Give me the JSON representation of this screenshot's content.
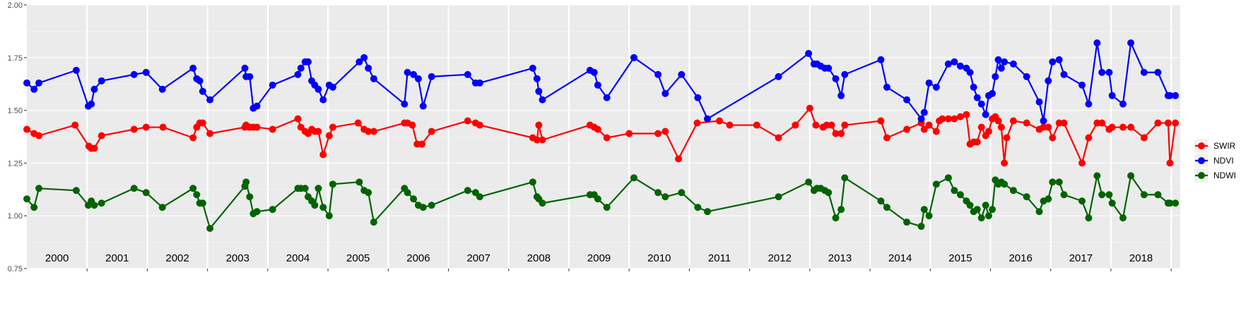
{
  "chart_data": {
    "type": "line",
    "title": "",
    "xlabel": "",
    "ylabel": "",
    "ylim": [
      0.75,
      2.0
    ],
    "y_ticks": [
      "0.75",
      "1.00",
      "1.25",
      "1.50",
      "1.75",
      "2.00"
    ],
    "y_tick_values": [
      0.75,
      1.0,
      1.25,
      1.5,
      1.75,
      2.0
    ],
    "xlim": [
      2000.0,
      2019.15
    ],
    "year_labels": [
      "2000",
      "2001",
      "2002",
      "2003",
      "2004",
      "2005",
      "2006",
      "2007",
      "2008",
      "2009",
      "2010",
      "2011",
      "2012",
      "2013",
      "2014",
      "2015",
      "2016",
      "2017",
      "2018"
    ],
    "year_label_values": [
      2000.5,
      2001.5,
      2002.5,
      2003.5,
      2004.5,
      2005.5,
      2006.5,
      2007.5,
      2008.5,
      2009.5,
      2010.5,
      2011.5,
      2012.5,
      2013.5,
      2014.5,
      2015.5,
      2016.5,
      2017.5,
      2018.5
    ],
    "year_dividers": [
      2001,
      2002,
      2003,
      2004,
      2005,
      2006,
      2007,
      2008,
      2009,
      2010,
      2011,
      2012,
      2013,
      2014,
      2015,
      2016,
      2017,
      2018,
      2019
    ],
    "grid": true,
    "legend_position": "right",
    "series": [
      {
        "name": "SWIR",
        "color": "#ff0000",
        "x": [
          2000.0,
          2000.12,
          2000.2,
          2000.8,
          2001.03,
          2001.07,
          2001.12,
          2001.24,
          2001.78,
          2001.98,
          2002.26,
          2002.76,
          2002.82,
          2002.87,
          2002.92,
          2003.04,
          2003.62,
          2003.64,
          2003.7,
          2003.76,
          2003.82,
          2004.08,
          2004.5,
          2004.55,
          2004.62,
          2004.67,
          2004.73,
          2004.78,
          2004.84,
          2004.92,
          2005.02,
          2005.08,
          2005.5,
          2005.6,
          2005.67,
          2005.76,
          2006.27,
          2006.32,
          2006.4,
          2006.48,
          2006.56,
          2006.72,
          2007.32,
          2007.45,
          2007.52,
          2008.4,
          2008.47,
          2008.5,
          2008.56,
          2009.35,
          2009.42,
          2009.48,
          2009.63,
          2010.0,
          2010.48,
          2010.6,
          2010.82,
          2011.13,
          2011.5,
          2011.67,
          2012.12,
          2012.48,
          2012.76,
          2013.0,
          2013.1,
          2013.22,
          2013.28,
          2013.36,
          2013.43,
          2013.52,
          2013.58,
          2014.18,
          2014.28,
          2014.61,
          2014.85,
          2014.9,
          2014.98,
          2015.1,
          2015.15,
          2015.2,
          2015.3,
          2015.4,
          2015.5,
          2015.6,
          2015.66,
          2015.72,
          2015.78,
          2015.85,
          2015.92,
          2015.97,
          2016.03,
          2016.08,
          2016.13,
          2016.18,
          2016.23,
          2016.27,
          2016.38,
          2016.6,
          2016.81,
          2016.88,
          2016.96,
          2017.03,
          2017.14,
          2017.22,
          2017.52,
          2017.63,
          2017.77,
          2017.85,
          2017.97,
          2018.02,
          2018.2,
          2018.33,
          2018.55,
          2018.78,
          2018.95,
          2018.98,
          2019.07
        ],
        "y": [
          1.41,
          1.39,
          1.38,
          1.43,
          1.33,
          1.32,
          1.32,
          1.38,
          1.41,
          1.42,
          1.42,
          1.37,
          1.42,
          1.44,
          1.44,
          1.39,
          1.42,
          1.43,
          1.42,
          1.42,
          1.42,
          1.41,
          1.46,
          1.42,
          1.4,
          1.39,
          1.41,
          1.4,
          1.4,
          1.29,
          1.38,
          1.42,
          1.44,
          1.41,
          1.4,
          1.4,
          1.44,
          1.44,
          1.43,
          1.34,
          1.34,
          1.4,
          1.45,
          1.44,
          1.43,
          1.37,
          1.36,
          1.43,
          1.36,
          1.43,
          1.42,
          1.41,
          1.37,
          1.39,
          1.39,
          1.4,
          1.27,
          1.44,
          1.45,
          1.43,
          1.43,
          1.37,
          1.43,
          1.51,
          1.43,
          1.42,
          1.43,
          1.43,
          1.39,
          1.39,
          1.43,
          1.45,
          1.37,
          1.41,
          1.44,
          1.41,
          1.43,
          1.4,
          1.45,
          1.46,
          1.46,
          1.46,
          1.47,
          1.48,
          1.34,
          1.35,
          1.35,
          1.42,
          1.38,
          1.4,
          1.46,
          1.47,
          1.45,
          1.42,
          1.25,
          1.37,
          1.45,
          1.44,
          1.41,
          1.42,
          1.42,
          1.37,
          1.44,
          1.44,
          1.25,
          1.37,
          1.44,
          1.44,
          1.41,
          1.42,
          1.42,
          1.42,
          1.37,
          1.44,
          1.44,
          1.25,
          1.44
        ],
        "x_note": ""
      },
      {
        "name": "NDVI",
        "color": "#0000ff",
        "x": [
          2000.0,
          2000.12,
          2000.2,
          2000.82,
          2001.02,
          2001.07,
          2001.12,
          2001.24,
          2001.78,
          2001.98,
          2002.25,
          2002.76,
          2002.82,
          2002.87,
          2002.92,
          2003.04,
          2003.62,
          2003.64,
          2003.7,
          2003.76,
          2003.82,
          2004.08,
          2004.5,
          2004.55,
          2004.62,
          2004.67,
          2004.73,
          2004.78,
          2004.84,
          2004.92,
          2005.02,
          2005.08,
          2005.52,
          2005.6,
          2005.67,
          2005.76,
          2006.27,
          2006.32,
          2006.42,
          2006.5,
          2006.58,
          2006.72,
          2007.32,
          2007.45,
          2007.52,
          2008.4,
          2008.47,
          2008.5,
          2008.56,
          2009.35,
          2009.42,
          2009.48,
          2009.63,
          2010.08,
          2010.48,
          2010.6,
          2010.87,
          2011.14,
          2011.3,
          2012.48,
          2012.98,
          2013.07,
          2013.12,
          2013.18,
          2013.25,
          2013.31,
          2013.43,
          2013.52,
          2013.58,
          2014.18,
          2014.28,
          2014.61,
          2014.85,
          2014.9,
          2014.98,
          2015.1,
          2015.3,
          2015.4,
          2015.5,
          2015.6,
          2015.66,
          2015.72,
          2015.78,
          2015.85,
          2015.92,
          2015.97,
          2016.03,
          2016.08,
          2016.13,
          2016.18,
          2016.23,
          2016.38,
          2016.6,
          2016.81,
          2016.88,
          2016.96,
          2017.03,
          2017.14,
          2017.22,
          2017.52,
          2017.63,
          2017.77,
          2017.85,
          2017.97,
          2018.02,
          2018.2,
          2018.33,
          2018.55,
          2018.78,
          2018.95,
          2018.98,
          2019.07
        ],
        "y": [
          1.63,
          1.6,
          1.63,
          1.69,
          1.52,
          1.53,
          1.6,
          1.64,
          1.67,
          1.68,
          1.6,
          1.7,
          1.65,
          1.64,
          1.59,
          1.55,
          1.7,
          1.66,
          1.66,
          1.51,
          1.52,
          1.62,
          1.67,
          1.7,
          1.73,
          1.73,
          1.64,
          1.62,
          1.6,
          1.55,
          1.62,
          1.61,
          1.73,
          1.75,
          1.7,
          1.65,
          1.53,
          1.68,
          1.67,
          1.65,
          1.52,
          1.66,
          1.67,
          1.63,
          1.63,
          1.7,
          1.65,
          1.59,
          1.55,
          1.69,
          1.68,
          1.62,
          1.56,
          1.75,
          1.67,
          1.58,
          1.67,
          1.56,
          1.46,
          1.66,
          1.77,
          1.72,
          1.72,
          1.71,
          1.7,
          1.7,
          1.65,
          1.57,
          1.67,
          1.74,
          1.61,
          1.55,
          1.46,
          1.49,
          1.63,
          1.61,
          1.72,
          1.73,
          1.71,
          1.7,
          1.68,
          1.61,
          1.56,
          1.53,
          1.48,
          1.57,
          1.58,
          1.66,
          1.74,
          1.7,
          1.73,
          1.72,
          1.66,
          1.54,
          1.45,
          1.64,
          1.73,
          1.74,
          1.67,
          1.62,
          1.53,
          1.82,
          1.68,
          1.68,
          1.57,
          1.53,
          1.82,
          1.68,
          1.68,
          1.57,
          1.57,
          1.57
        ],
        "x_note": ""
      },
      {
        "name": "NDWI",
        "color": "#006400",
        "x": [
          2000.0,
          2000.12,
          2000.2,
          2000.82,
          2001.02,
          2001.07,
          2001.12,
          2001.24,
          2001.78,
          2001.98,
          2002.25,
          2002.76,
          2002.82,
          2002.87,
          2002.92,
          2003.04,
          2003.62,
          2003.64,
          2003.7,
          2003.76,
          2003.82,
          2004.08,
          2004.5,
          2004.55,
          2004.62,
          2004.67,
          2004.73,
          2004.78,
          2004.84,
          2004.92,
          2005.02,
          2005.08,
          2005.52,
          2005.6,
          2005.67,
          2005.76,
          2006.27,
          2006.32,
          2006.42,
          2006.5,
          2006.58,
          2006.72,
          2007.32,
          2007.45,
          2007.52,
          2008.4,
          2008.47,
          2008.5,
          2008.56,
          2009.35,
          2009.42,
          2009.48,
          2009.63,
          2010.08,
          2010.48,
          2010.6,
          2010.87,
          2011.14,
          2011.3,
          2012.48,
          2012.98,
          2013.07,
          2013.12,
          2013.18,
          2013.25,
          2013.31,
          2013.43,
          2013.52,
          2013.58,
          2014.18,
          2014.28,
          2014.61,
          2014.85,
          2014.9,
          2014.98,
          2015.1,
          2015.3,
          2015.4,
          2015.5,
          2015.6,
          2015.66,
          2015.72,
          2015.78,
          2015.85,
          2015.92,
          2015.97,
          2016.03,
          2016.08,
          2016.13,
          2016.18,
          2016.23,
          2016.38,
          2016.6,
          2016.81,
          2016.88,
          2016.96,
          2017.03,
          2017.14,
          2017.22,
          2017.52,
          2017.63,
          2017.77,
          2017.85,
          2017.97,
          2018.02,
          2018.2,
          2018.33,
          2018.55,
          2018.78,
          2018.95,
          2018.98,
          2019.07
        ],
        "y": [
          1.08,
          1.04,
          1.13,
          1.12,
          1.05,
          1.07,
          1.05,
          1.06,
          1.13,
          1.11,
          1.04,
          1.13,
          1.1,
          1.06,
          1.06,
          0.94,
          1.14,
          1.16,
          1.09,
          1.01,
          1.02,
          1.03,
          1.13,
          1.13,
          1.13,
          1.09,
          1.07,
          1.05,
          1.13,
          1.04,
          1.0,
          1.15,
          1.16,
          1.12,
          1.11,
          0.97,
          1.13,
          1.11,
          1.08,
          1.05,
          1.04,
          1.05,
          1.12,
          1.11,
          1.09,
          1.16,
          1.09,
          1.08,
          1.06,
          1.1,
          1.1,
          1.08,
          1.04,
          1.18,
          1.11,
          1.09,
          1.11,
          1.04,
          1.02,
          1.09,
          1.16,
          1.12,
          1.13,
          1.13,
          1.12,
          1.11,
          0.99,
          1.03,
          1.18,
          1.07,
          1.04,
          0.97,
          0.95,
          1.03,
          1.0,
          1.15,
          1.18,
          1.12,
          1.1,
          1.07,
          1.05,
          1.02,
          1.03,
          0.99,
          1.05,
          1.0,
          1.03,
          1.17,
          1.15,
          1.16,
          1.15,
          1.12,
          1.09,
          1.02,
          1.07,
          1.08,
          1.16,
          1.16,
          1.1,
          1.07,
          0.99,
          1.19,
          1.1,
          1.1,
          1.06,
          0.99,
          1.19,
          1.1,
          1.1,
          1.06,
          1.06,
          1.06
        ],
        "x_note": ""
      }
    ]
  }
}
